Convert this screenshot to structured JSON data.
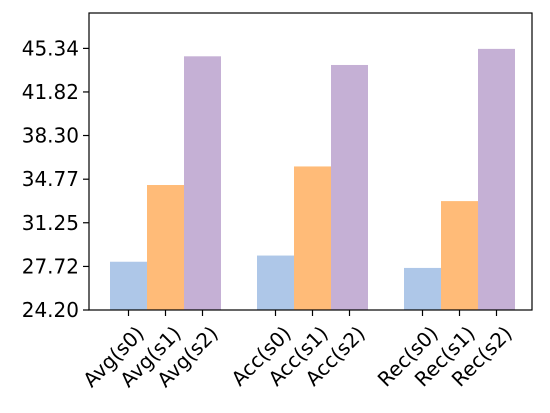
{
  "chart_data": {
    "type": "bar",
    "title": "",
    "xlabel": "",
    "ylabel": "",
    "groups": [
      {
        "bars": [
          {
            "label": "Avg(s0)",
            "value": 28.1,
            "color": "#aec7e8"
          },
          {
            "label": "Avg(s1)",
            "value": 34.3,
            "color": "#ffbb78"
          },
          {
            "label": "Avg(s2)",
            "value": 44.7,
            "color": "#c5b0d5"
          }
        ]
      },
      {
        "bars": [
          {
            "label": "Acc(s0)",
            "value": 28.6,
            "color": "#aec7e8"
          },
          {
            "label": "Acc(s1)",
            "value": 35.8,
            "color": "#ffbb78"
          },
          {
            "label": "Acc(s2)",
            "value": 44.0,
            "color": "#c5b0d5"
          }
        ]
      },
      {
        "bars": [
          {
            "label": "Rec(s0)",
            "value": 27.6,
            "color": "#aec7e8"
          },
          {
            "label": "Rec(s1)",
            "value": 33.0,
            "color": "#ffbb78"
          },
          {
            "label": "Rec(s2)",
            "value": 45.3,
            "color": "#c5b0d5"
          }
        ]
      }
    ],
    "y_ticks": [
      "24.20",
      "27.72",
      "31.25",
      "34.77",
      "38.30",
      "41.82",
      "45.34"
    ],
    "ylim": [
      24.2,
      48.2
    ],
    "grid": false,
    "legend": "none"
  }
}
